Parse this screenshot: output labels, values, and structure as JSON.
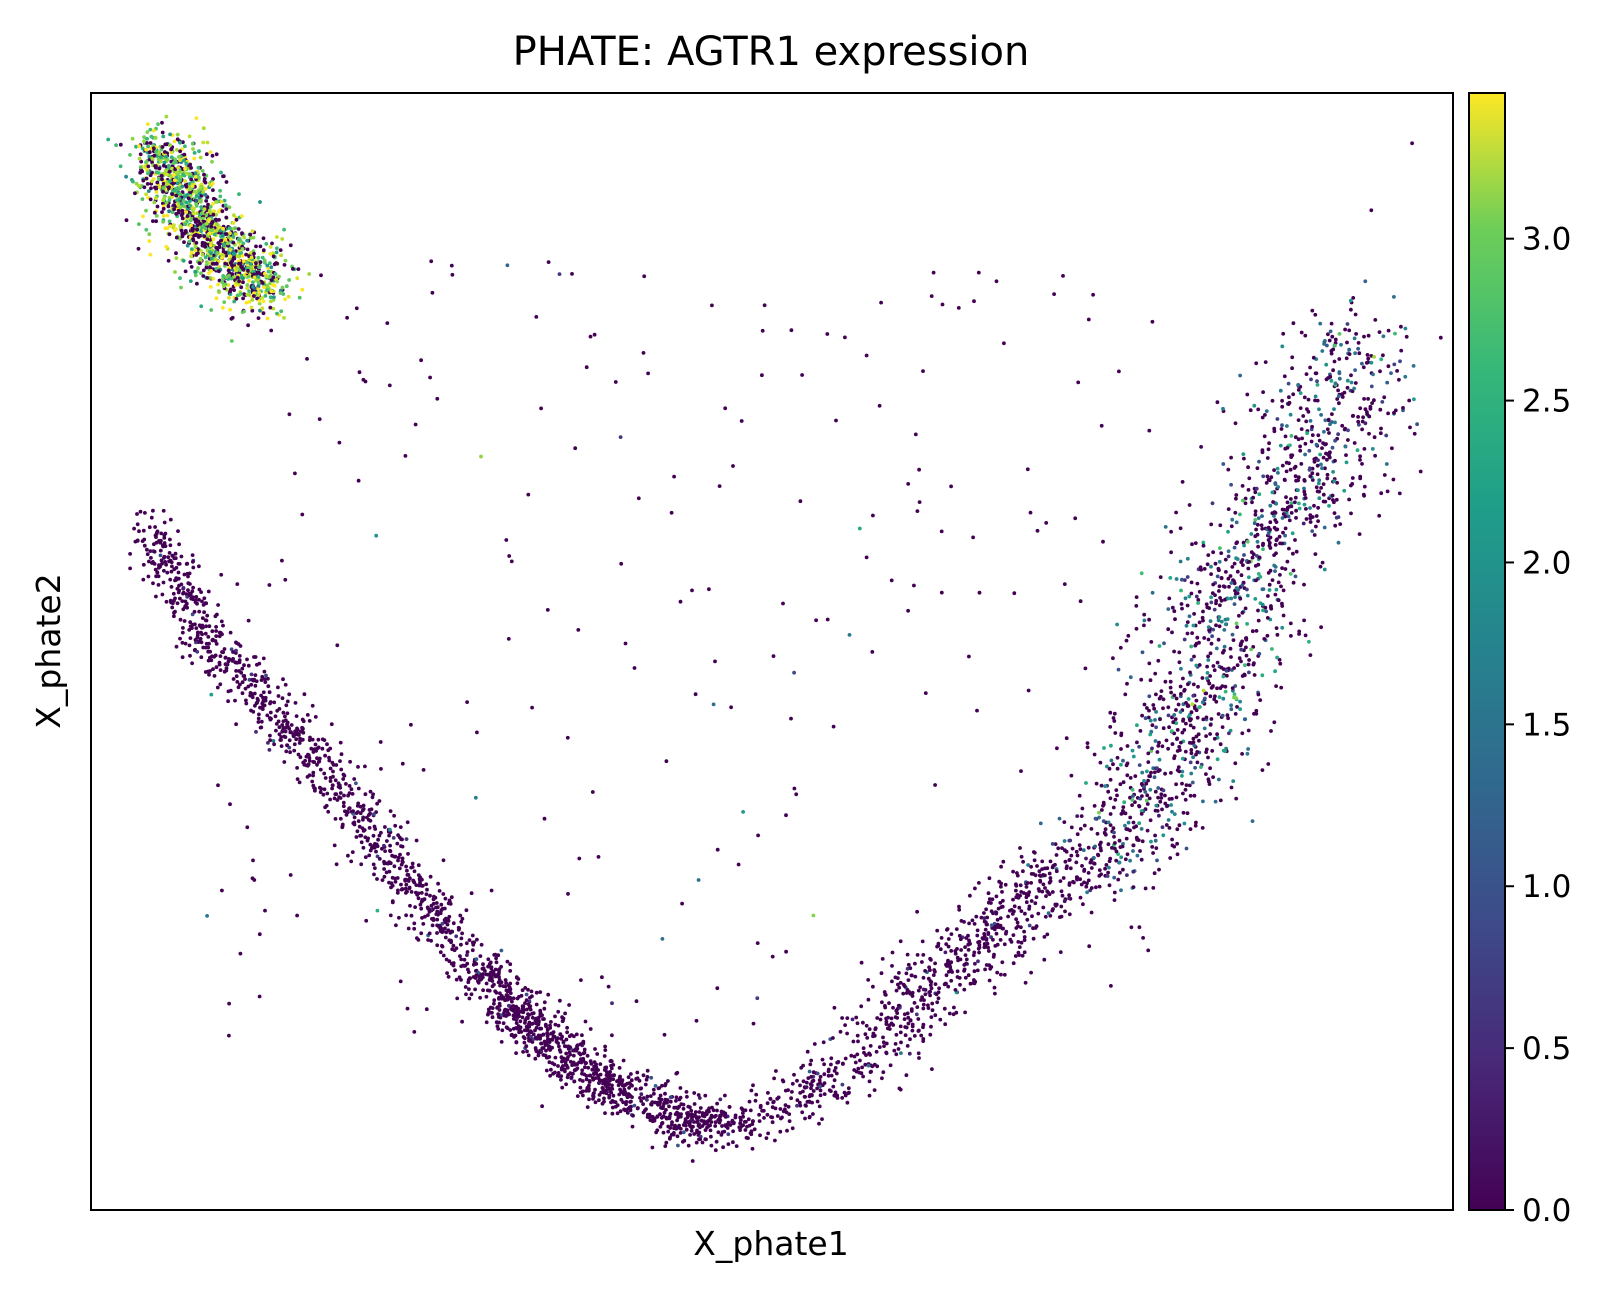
{
  "chart_data": {
    "type": "scatter",
    "title": "PHATE: AGTR1 expression",
    "xlabel": "X_phate1",
    "ylabel": "X_phate2",
    "xticks_shown": false,
    "yticks_shown": false,
    "grid": false,
    "xlim": [
      0,
      100
    ],
    "ylim": [
      0,
      100
    ],
    "colormap": "viridis",
    "colorbar": {
      "range": [
        0,
        3.45
      ],
      "ticks": [
        0.0,
        0.5,
        1.0,
        1.5,
        2.0,
        2.5,
        3.0
      ],
      "tick_labels": [
        "0.0",
        "0.5",
        "1.0",
        "1.5",
        "2.0",
        "2.5",
        "3.0"
      ]
    },
    "colors": {
      "low": "#440154",
      "high": "#fde725"
    },
    "structure": [
      {
        "region": "upper-left tip",
        "path": [
          [
            5,
            95
          ],
          [
            8,
            88
          ],
          [
            13,
            82
          ]
        ],
        "density": "high",
        "mean_value": 2.8
      },
      {
        "region": "left descending branch",
        "path": [
          [
            4.5,
            61
          ],
          [
            8,
            52
          ],
          [
            18,
            38
          ],
          [
            28,
            22
          ],
          [
            36,
            12
          ],
          [
            44,
            7
          ],
          [
            47,
            8
          ]
        ],
        "density": "high",
        "mean_value": 0.1
      },
      {
        "region": "lower-left arc",
        "path": [
          [
            28,
            22
          ],
          [
            36,
            13
          ],
          [
            44,
            8
          ],
          [
            48,
            7.5
          ],
          [
            50,
            8.5
          ],
          [
            55,
            12
          ]
        ],
        "density": "medium",
        "mean_value": 0.1
      },
      {
        "region": "lower-right rising",
        "path": [
          [
            55,
            12
          ],
          [
            60,
            18
          ],
          [
            65,
            24
          ],
          [
            70,
            29
          ],
          [
            75,
            32
          ]
        ],
        "density": "medium",
        "mean_value": 0.3
      },
      {
        "region": "right cone",
        "path": [
          [
            75,
            32
          ],
          [
            80,
            42
          ],
          [
            85,
            58
          ],
          [
            90,
            68
          ],
          [
            93,
            78
          ]
        ],
        "density": "high",
        "mean_value": 1.4
      }
    ],
    "outliers": [
      [
        97,
        95.5
      ],
      [
        94,
        89.5
      ],
      [
        60,
        65
      ],
      [
        47,
        45
      ],
      [
        38,
        20
      ]
    ]
  }
}
